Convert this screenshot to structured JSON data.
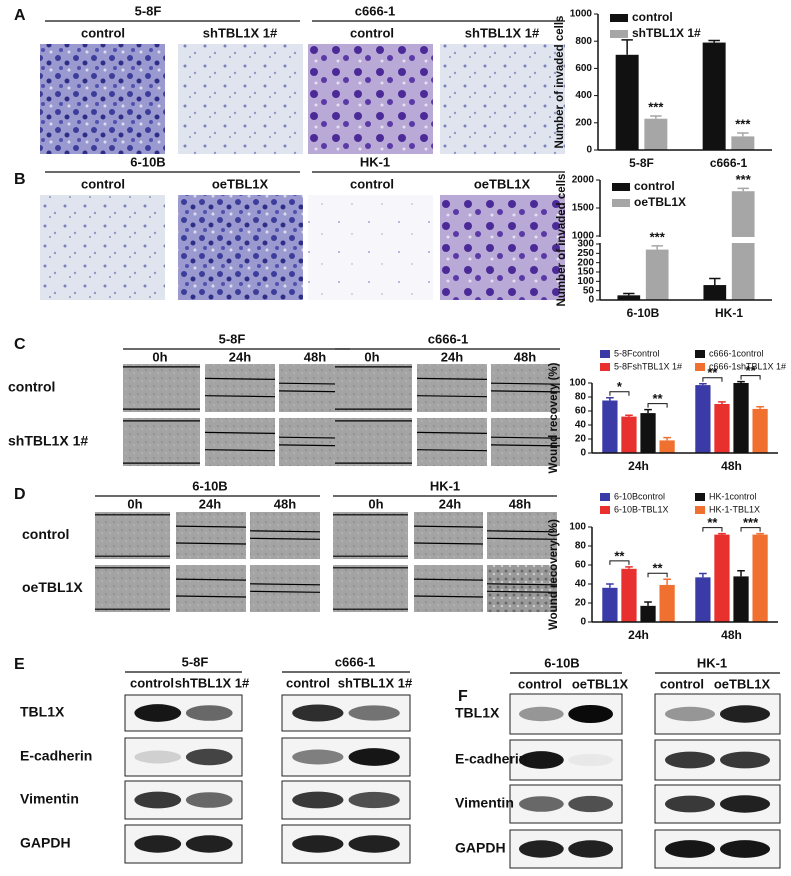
{
  "figure": {
    "panel_labels": [
      "A",
      "B",
      "C",
      "D",
      "E",
      "F"
    ],
    "A": {
      "groups": [
        {
          "name": "5-8F",
          "conditions": [
            "control",
            "shTBL1X 1#"
          ]
        },
        {
          "name": "c666-1",
          "conditions": [
            "control",
            "shTBL1X 1#"
          ]
        }
      ]
    },
    "B": {
      "groups": [
        {
          "name": "6-10B",
          "conditions": [
            "control",
            "oeTBL1X"
          ]
        },
        {
          "name": "HK-1",
          "conditions": [
            "control",
            "oeTBL1X"
          ]
        }
      ]
    },
    "C": {
      "groups": [
        {
          "name": "5-8F",
          "times": [
            "0h",
            "24h",
            "48h"
          ]
        },
        {
          "name": "c666-1",
          "times": [
            "0h",
            "24h",
            "48h"
          ]
        }
      ],
      "rows": [
        "control",
        "shTBL1X 1#"
      ]
    },
    "D": {
      "groups": [
        {
          "name": "6-10B",
          "times": [
            "0h",
            "24h",
            "48h"
          ]
        },
        {
          "name": "HK-1",
          "times": [
            "0h",
            "24h",
            "48h"
          ]
        }
      ],
      "rows": [
        "control",
        "oeTBL1X"
      ]
    },
    "E": {
      "groups": [
        {
          "name": "5-8F",
          "conditions": [
            "control",
            "shTBL1X 1#"
          ]
        },
        {
          "name": "c666-1",
          "conditions": [
            "control",
            "shTBL1X 1#"
          ]
        }
      ],
      "proteins": [
        "TBL1X",
        "E-cadherin",
        "Vimentin",
        "GAPDH"
      ]
    },
    "F": {
      "groups": [
        {
          "name": "6-10B",
          "conditions": [
            "control",
            "oeTBL1X"
          ]
        },
        {
          "name": "HK-1",
          "conditions": [
            "control",
            "oeTBL1X"
          ]
        }
      ],
      "proteins": [
        "TBL1X",
        "E-cadherin",
        "Vimentin",
        "GAPDH"
      ]
    }
  },
  "chart_data": [
    {
      "type": "bar",
      "y_label": "Number of invaded cells",
      "categories": [
        "5-8F",
        "c666-1"
      ],
      "series": [
        {
          "name": "control",
          "color": "#111111",
          "values": [
            700,
            790
          ],
          "errors": [
            110,
            15
          ]
        },
        {
          "name": "shTBL1X 1#",
          "color": "#a6a6a6",
          "values": [
            230,
            100
          ],
          "errors": [
            20,
            25
          ]
        }
      ],
      "ylim": [
        0,
        1000
      ],
      "yticks": [
        0,
        200,
        400,
        600,
        800,
        1000
      ],
      "annotations": [
        "***",
        "***"
      ],
      "legend": "upper-left"
    },
    {
      "type": "bar",
      "y_label": "Number of invaded cells",
      "categories": [
        "6-10B",
        "HK-1"
      ],
      "series": [
        {
          "name": "control",
          "color": "#111111",
          "values": [
            25,
            80
          ],
          "errors": [
            10,
            35
          ]
        },
        {
          "name": "oeTBL1X",
          "color": "#a6a6a6",
          "values": [
            270,
            1800
          ],
          "errors": [
            20,
            50
          ]
        }
      ],
      "ylim": [
        0,
        2000
      ],
      "y_break": [
        300,
        1000
      ],
      "yticks": [
        0,
        50,
        100,
        150,
        200,
        250,
        300,
        1000,
        1500,
        2000
      ],
      "annotations": [
        "***",
        "***"
      ],
      "legend": "upper-left"
    },
    {
      "type": "bar",
      "y_label": "Wound recovery (%)",
      "categories": [
        "24h",
        "48h"
      ],
      "series": [
        {
          "name": "5-8Fcontrol",
          "color": "#3b3ba8",
          "values": [
            75,
            97
          ],
          "errors": [
            4,
            2
          ]
        },
        {
          "name": "5-8FshTBL1X 1#",
          "color": "#e8312f",
          "values": [
            52,
            70
          ],
          "errors": [
            2,
            3
          ]
        },
        {
          "name": "c666-1control",
          "color": "#111111",
          "values": [
            57,
            100
          ],
          "errors": [
            5,
            2
          ]
        },
        {
          "name": "c666-1shTBL1X 1#",
          "color": "#f07030",
          "values": [
            18,
            63
          ],
          "errors": [
            4,
            3
          ]
        }
      ],
      "ylim": [
        0,
        100
      ],
      "yticks": [
        0,
        20,
        40,
        60,
        80,
        100
      ],
      "annotations": [
        "*",
        "**",
        "**",
        "**"
      ],
      "legend": "top"
    },
    {
      "type": "bar",
      "y_label": "Wound recovery (%)",
      "categories": [
        "24h",
        "48h"
      ],
      "series": [
        {
          "name": "6-10Bcontrol",
          "color": "#3b3ba8",
          "values": [
            36,
            47
          ],
          "errors": [
            4,
            4
          ]
        },
        {
          "name": "6-10B-TBL1X",
          "color": "#e8312f",
          "values": [
            56,
            92
          ],
          "errors": [
            2,
            1
          ]
        },
        {
          "name": "HK-1control",
          "color": "#111111",
          "values": [
            17,
            48
          ],
          "errors": [
            4,
            6
          ]
        },
        {
          "name": "HK-1-TBL1X",
          "color": "#f07030",
          "values": [
            39,
            92
          ],
          "errors": [
            6,
            1
          ]
        }
      ],
      "ylim": [
        0,
        100
      ],
      "yticks": [
        0,
        20,
        40,
        60,
        80,
        100
      ],
      "annotations": [
        "**",
        "**",
        "**",
        "***"
      ],
      "legend": "top"
    }
  ]
}
